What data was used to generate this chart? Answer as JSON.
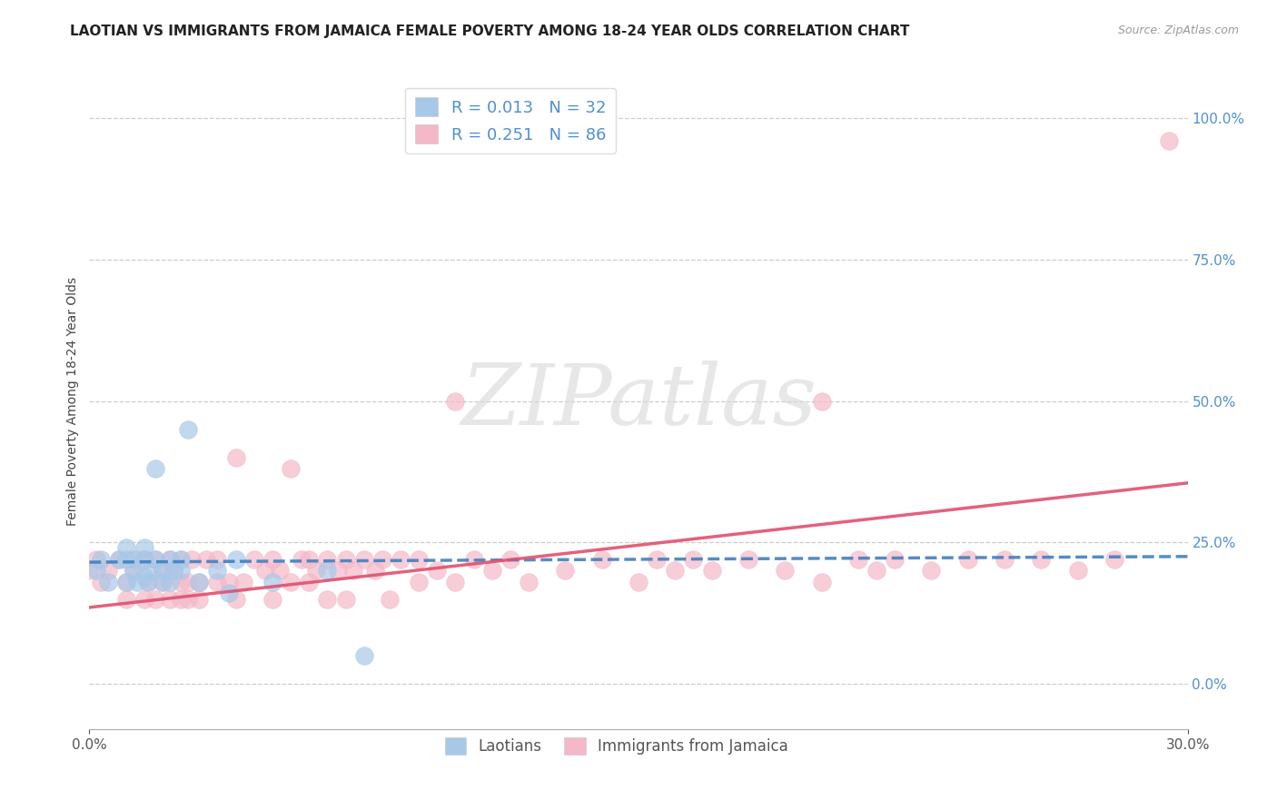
{
  "title": "LAOTIAN VS IMMIGRANTS FROM JAMAICA FEMALE POVERTY AMONG 18-24 YEAR OLDS CORRELATION CHART",
  "source": "Source: ZipAtlas.com",
  "ylabel": "Female Poverty Among 18-24 Year Olds",
  "xlim": [
    0.0,
    0.3
  ],
  "ylim": [
    -0.08,
    1.08
  ],
  "xtick_positions": [
    0.0,
    0.3
  ],
  "xticklabels": [
    "0.0%",
    "30.0%"
  ],
  "yticks_right": [
    0.0,
    0.25,
    0.5,
    0.75,
    1.0
  ],
  "ytick_right_labels": [
    "0.0%",
    "25.0%",
    "50.0%",
    "75.0%",
    "100.0%"
  ],
  "laotian_R": 0.013,
  "laotian_N": 32,
  "jamaica_R": 0.251,
  "jamaica_N": 86,
  "laotian_color": "#a8c8e8",
  "jamaica_color": "#f4b8c8",
  "laotian_line_color": "#4080c0",
  "jamaica_line_color": "#e05070",
  "laotian_line_style": "--",
  "jamaica_line_style": "-",
  "watermark_text": "ZIPatlas",
  "watermark_color": "#d8d8d8",
  "legend1_label1": "R = 0.013   N = 32",
  "legend1_label2": "R = 0.251   N = 86",
  "legend2_label1": "Laotians",
  "legend2_label2": "Immigrants from Jamaica",
  "title_fontsize": 11,
  "axis_label_fontsize": 10,
  "tick_fontsize": 11,
  "right_tick_color": "#5090d0",
  "background_color": "#ffffff",
  "laotian_scatter_x": [
    0.002,
    0.003,
    0.005,
    0.008,
    0.01,
    0.01,
    0.01,
    0.012,
    0.012,
    0.013,
    0.015,
    0.015,
    0.015,
    0.016,
    0.017,
    0.018,
    0.018,
    0.02,
    0.02,
    0.022,
    0.022,
    0.023,
    0.025,
    0.025,
    0.027,
    0.03,
    0.035,
    0.038,
    0.04,
    0.05,
    0.065,
    0.075
  ],
  "laotian_scatter_y": [
    0.2,
    0.22,
    0.18,
    0.22,
    0.18,
    0.22,
    0.24,
    0.2,
    0.22,
    0.18,
    0.19,
    0.22,
    0.24,
    0.18,
    0.2,
    0.22,
    0.38,
    0.18,
    0.2,
    0.18,
    0.22,
    0.2,
    0.2,
    0.22,
    0.45,
    0.18,
    0.2,
    0.16,
    0.22,
    0.18,
    0.2,
    0.05
  ],
  "jamaica_scatter_x": [
    0.0,
    0.002,
    0.003,
    0.005,
    0.008,
    0.01,
    0.01,
    0.012,
    0.013,
    0.015,
    0.015,
    0.016,
    0.018,
    0.018,
    0.02,
    0.02,
    0.022,
    0.022,
    0.023,
    0.025,
    0.025,
    0.025,
    0.027,
    0.027,
    0.028,
    0.03,
    0.03,
    0.032,
    0.035,
    0.035,
    0.038,
    0.04,
    0.04,
    0.042,
    0.045,
    0.048,
    0.05,
    0.05,
    0.052,
    0.055,
    0.055,
    0.058,
    0.06,
    0.06,
    0.062,
    0.065,
    0.065,
    0.068,
    0.07,
    0.07,
    0.072,
    0.075,
    0.078,
    0.08,
    0.082,
    0.085,
    0.09,
    0.09,
    0.095,
    0.1,
    0.1,
    0.105,
    0.11,
    0.115,
    0.12,
    0.13,
    0.14,
    0.15,
    0.155,
    0.16,
    0.165,
    0.17,
    0.18,
    0.19,
    0.2,
    0.2,
    0.21,
    0.215,
    0.22,
    0.23,
    0.24,
    0.25,
    0.26,
    0.27,
    0.28,
    0.295
  ],
  "jamaica_scatter_y": [
    0.2,
    0.22,
    0.18,
    0.2,
    0.22,
    0.15,
    0.18,
    0.2,
    0.22,
    0.15,
    0.22,
    0.18,
    0.15,
    0.22,
    0.18,
    0.2,
    0.15,
    0.22,
    0.2,
    0.15,
    0.18,
    0.22,
    0.15,
    0.18,
    0.22,
    0.15,
    0.18,
    0.22,
    0.18,
    0.22,
    0.18,
    0.15,
    0.4,
    0.18,
    0.22,
    0.2,
    0.15,
    0.22,
    0.2,
    0.18,
    0.38,
    0.22,
    0.18,
    0.22,
    0.2,
    0.15,
    0.22,
    0.2,
    0.15,
    0.22,
    0.2,
    0.22,
    0.2,
    0.22,
    0.15,
    0.22,
    0.18,
    0.22,
    0.2,
    0.18,
    0.5,
    0.22,
    0.2,
    0.22,
    0.18,
    0.2,
    0.22,
    0.18,
    0.22,
    0.2,
    0.22,
    0.2,
    0.22,
    0.2,
    0.18,
    0.5,
    0.22,
    0.2,
    0.22,
    0.2,
    0.22,
    0.22,
    0.22,
    0.2,
    0.22,
    0.96
  ],
  "laotian_trend_x": [
    0.0,
    0.3
  ],
  "laotian_trend_y": [
    0.215,
    0.225
  ],
  "jamaica_trend_x": [
    0.0,
    0.3
  ],
  "jamaica_trend_y": [
    0.135,
    0.355
  ]
}
